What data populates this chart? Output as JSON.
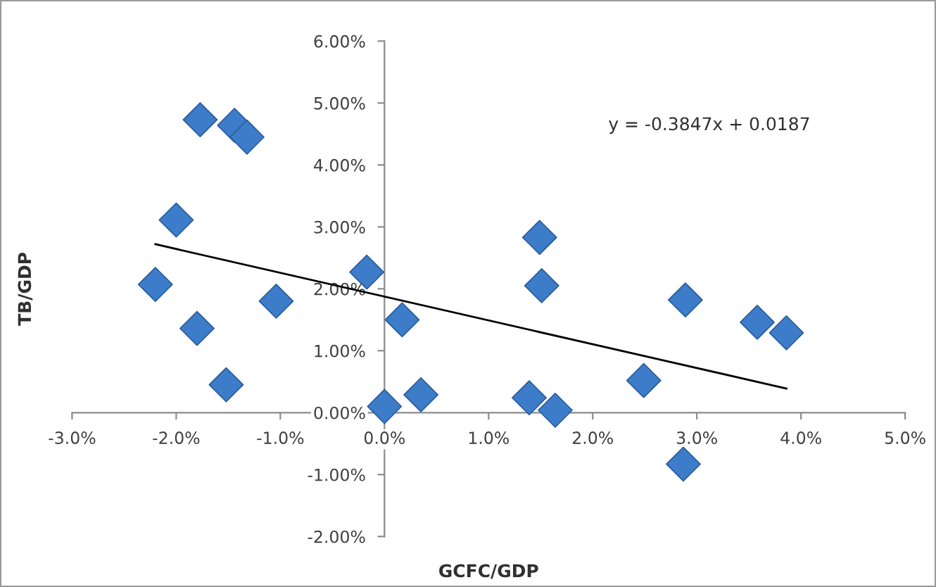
{
  "chart_data": {
    "type": "scatter",
    "xlabel": "GCFC/GDP",
    "ylabel": "TB/GDP",
    "annotations": [
      "y = -0.3847x + 0.0187"
    ],
    "xlim": [
      -3,
      5
    ],
    "ylim": [
      -2,
      6
    ],
    "xticks": [
      {
        "value": -3,
        "label": "-3.0%"
      },
      {
        "value": -2,
        "label": "-2.0%"
      },
      {
        "value": -1,
        "label": "-1.0%"
      },
      {
        "value": 0,
        "label": "0.0%"
      },
      {
        "value": 1,
        "label": "1.0%"
      },
      {
        "value": 2,
        "label": "2.0%"
      },
      {
        "value": 3,
        "label": "3.0%"
      },
      {
        "value": 4,
        "label": "4.0%"
      },
      {
        "value": 5,
        "label": "5.0%"
      }
    ],
    "yticks": [
      {
        "value": -2,
        "label": "-2.00%"
      },
      {
        "value": -1,
        "label": "-1.00%"
      },
      {
        "value": 0,
        "label": "0.00%"
      },
      {
        "value": 1,
        "label": "1.00%"
      },
      {
        "value": 2,
        "label": "2.00%"
      },
      {
        "value": 3,
        "label": "3.00%"
      },
      {
        "value": 4,
        "label": "4.00%"
      },
      {
        "value": 5,
        "label": "5.00%"
      },
      {
        "value": 6,
        "label": "6.00%"
      }
    ],
    "grid": false,
    "legend": false,
    "series": [
      {
        "marker": "diamond",
        "color": "#3d7cc9",
        "x": [
          -1.77,
          -1.44,
          -1.32,
          -2.0,
          -2.2,
          -1.04,
          -1.8,
          -1.52,
          -0.17,
          0.17,
          0.0,
          0.35,
          1.49,
          1.51,
          2.89,
          3.58,
          3.86,
          2.49,
          1.39,
          1.64,
          2.87
        ],
        "values": [
          4.73,
          4.64,
          4.45,
          3.11,
          2.07,
          1.8,
          1.36,
          0.45,
          2.27,
          1.5,
          0.1,
          0.29,
          2.83,
          2.05,
          1.82,
          1.46,
          1.29,
          0.52,
          0.24,
          0.04,
          -0.83
        ]
      },
      {
        "type": "line",
        "color": "#000000",
        "x": [
          -2.2,
          3.86
        ],
        "values": [
          2.72,
          0.39
        ]
      }
    ]
  }
}
